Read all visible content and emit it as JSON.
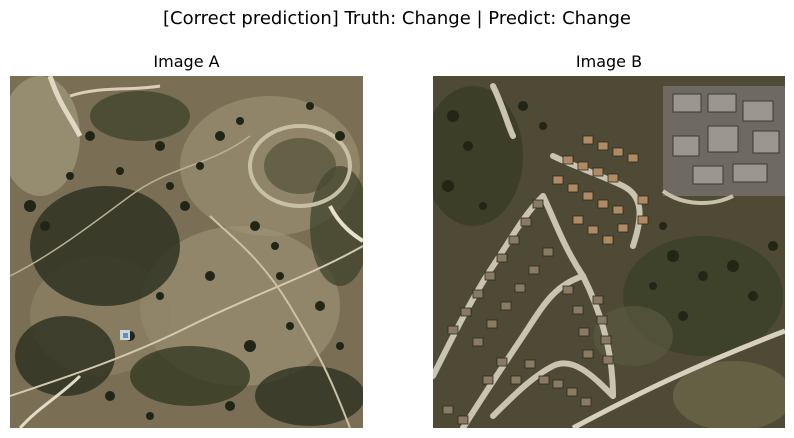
{
  "figure": {
    "suptitle": "[Correct prediction] Truth: Change | Predict: Change"
  },
  "panels": [
    {
      "title": "Image A",
      "description": "satellite image before: scrubland with dirt trails and sparse trees"
    },
    {
      "title": "Image B",
      "description": "satellite image after: suburban housing development with curving roads"
    }
  ],
  "colors": {
    "background": "#ffffff",
    "text": "#000000"
  }
}
